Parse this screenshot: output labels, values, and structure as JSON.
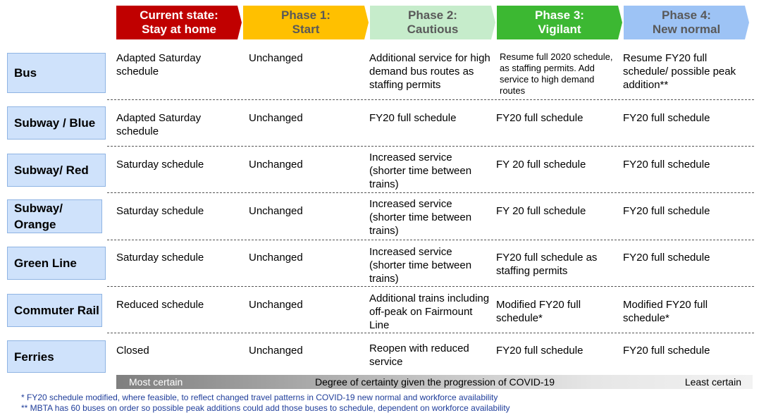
{
  "phases": [
    {
      "line1": "Current state:",
      "line2": "Stay at home",
      "bg": "#c00000",
      "fg": "#ffffff"
    },
    {
      "line1": "Phase 1:",
      "line2": "Start",
      "bg": "#ffc000",
      "fg": "#595959"
    },
    {
      "line1": "Phase 2:",
      "line2": "Cautious",
      "bg": "#c6eccb",
      "fg": "#595959"
    },
    {
      "line1": "Phase 3:",
      "line2": "Vigilant",
      "bg": "#3cb832",
      "fg": "#ffffff"
    },
    {
      "line1": "Phase 4:",
      "line2": "New normal",
      "bg": "#9dc3f5",
      "fg": "#595959"
    }
  ],
  "rows": [
    {
      "label": "Bus",
      "cells": [
        "Adapted Saturday schedule",
        "Unchanged",
        "Additional service for high demand bus routes as staffing permits",
        "Resume full 2020 schedule, as staffing permits. Add service to high demand routes",
        "Resume FY20 full schedule/ possible peak addition**"
      ]
    },
    {
      "label": "Subway / Blue",
      "cells": [
        "Adapted Saturday schedule",
        "Unchanged",
        "FY20 full schedule",
        "FY20 full schedule",
        "FY20 full schedule"
      ]
    },
    {
      "label": "Subway/ Red",
      "cells": [
        "Saturday schedule",
        "Unchanged",
        "Increased service (shorter time between trains)",
        "FY 20 full schedule",
        "FY20 full schedule"
      ]
    },
    {
      "label": "Subway/ Orange",
      "cells": [
        "Saturday schedule",
        "Unchanged",
        "Increased service (shorter time between trains)",
        "FY 20 full schedule",
        "FY20 full schedule"
      ]
    },
    {
      "label": "Green Line",
      "cells": [
        "Saturday schedule",
        "Unchanged",
        "Increased service (shorter time between trains)",
        "FY20 full schedule as staffing permits",
        "FY20 full schedule"
      ]
    },
    {
      "label": "Commuter Rail",
      "cells": [
        "Reduced schedule",
        "Unchanged",
        "Additional trains including off-peak on Fairmount Line",
        "Modified FY20 full schedule*",
        "Modified FY20 full schedule*"
      ]
    },
    {
      "label": "Ferries",
      "cells": [
        "Closed",
        "Unchanged",
        "Reopen with reduced service",
        "FY20 full schedule",
        "FY20 full schedule"
      ]
    }
  ],
  "certainty": {
    "left": "Most certain",
    "center": "Degree of certainty given the progression of COVID-19",
    "right": "Least certain"
  },
  "footnotes": [
    "* FY20 schedule modified, where feasible, to reflect changed travel patterns in COVID-19 new normal and workforce availability",
    "** MBTA has 60 buses on order so possible peak additions could add those buses to schedule, dependent on workforce availability"
  ]
}
